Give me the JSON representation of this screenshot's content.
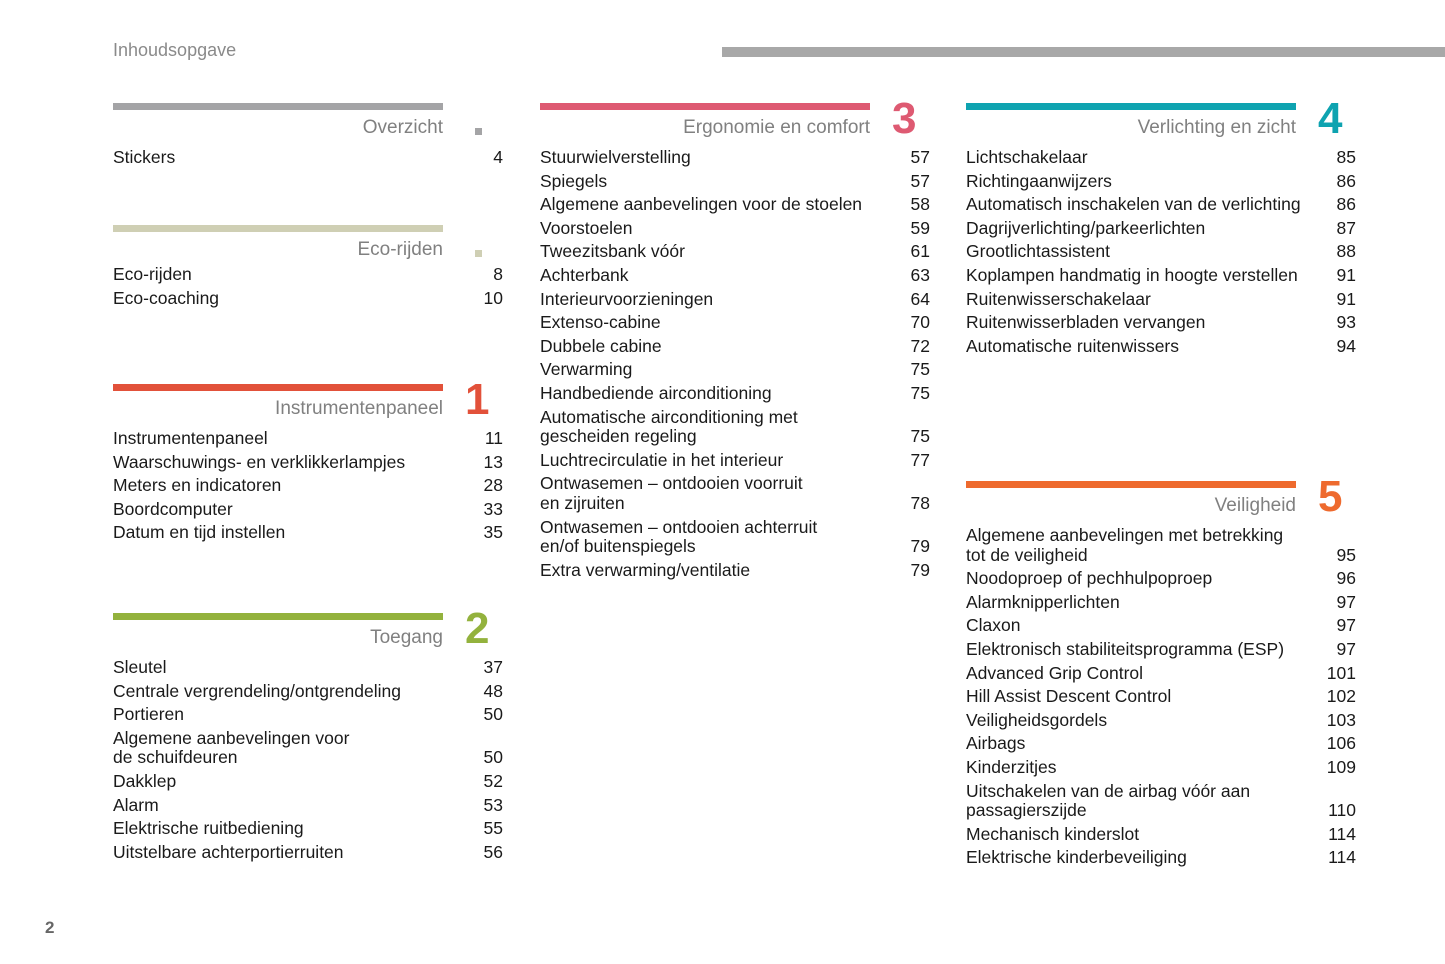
{
  "header": {
    "title": "Inhoudsopgave",
    "page_number": "2"
  },
  "sections": [
    {
      "id": "overzicht",
      "title": "Overzicht",
      "number": "",
      "color": "#a4a4a6",
      "items": [
        {
          "text": "Stickers",
          "page": "4"
        }
      ]
    },
    {
      "id": "eco",
      "title": "Eco-rijden",
      "number": "",
      "color": "#cfcfb4",
      "items": [
        {
          "text": "Eco-rijden",
          "page": "8"
        },
        {
          "text": "Eco-coaching",
          "page": "10"
        }
      ]
    },
    {
      "id": "instrumenten",
      "title": "Instrumentenpaneel",
      "number": "1",
      "color": "#e2513a",
      "items": [
        {
          "text": "Instrumentenpaneel",
          "page": "11"
        },
        {
          "text": "Waarschuwings- en verklikkerlampjes",
          "page": "13"
        },
        {
          "text": "Meters en indicatoren",
          "page": "28"
        },
        {
          "text": "Boordcomputer",
          "page": "33"
        },
        {
          "text": "Datum en tijd instellen",
          "page": "35"
        }
      ]
    },
    {
      "id": "toegang",
      "title": "Toegang",
      "number": "2",
      "color": "#93b23d",
      "items": [
        {
          "text": "Sleutel",
          "page": "37"
        },
        {
          "text": "Centrale vergrendeling/ontgrendeling",
          "page": "48"
        },
        {
          "text": "Portieren",
          "page": "50"
        },
        {
          "text": [
            "Algemene aanbevelingen voor",
            "de schuifdeuren"
          ],
          "page": "50"
        },
        {
          "text": "Dakklep",
          "page": "52"
        },
        {
          "text": "Alarm",
          "page": "53"
        },
        {
          "text": "Elektrische ruitbediening",
          "page": "55"
        },
        {
          "text": "Uitstelbare achterportierruiten",
          "page": "56"
        }
      ]
    },
    {
      "id": "ergonomie",
      "title": "Ergonomie en comfort",
      "number": "3",
      "color": "#de5a72",
      "items": [
        {
          "text": "Stuurwielverstelling",
          "page": "57"
        },
        {
          "text": "Spiegels",
          "page": "57"
        },
        {
          "text": "Algemene aanbevelingen voor de stoelen",
          "page": "58"
        },
        {
          "text": "Voorstoelen",
          "page": "59"
        },
        {
          "text": "Tweezitsbank vóór",
          "page": "61"
        },
        {
          "text": "Achterbank",
          "page": "63"
        },
        {
          "text": "Interieurvoorzieningen",
          "page": "64"
        },
        {
          "text": "Extenso-cabine",
          "page": "70"
        },
        {
          "text": "Dubbele cabine",
          "page": "72"
        },
        {
          "text": "Verwarming",
          "page": "75"
        },
        {
          "text": "Handbediende airconditioning",
          "page": "75"
        },
        {
          "text": [
            "Automatische airconditioning met",
            "gescheiden regeling"
          ],
          "page": "75"
        },
        {
          "text": "Luchtrecirculatie in het interieur",
          "page": "77"
        },
        {
          "text": [
            "Ontwasemen – ontdooien voorruit",
            "en zijruiten"
          ],
          "page": "78"
        },
        {
          "text": [
            "Ontwasemen – ontdooien achterruit",
            "en/of buitenspiegels"
          ],
          "page": "79"
        },
        {
          "text": "Extra verwarming/ventilatie",
          "page": "79"
        }
      ]
    },
    {
      "id": "verlichting",
      "title": "Verlichting en zicht",
      "number": "4",
      "color": "#0ea3b0",
      "items": [
        {
          "text": "Lichtschakelaar",
          "page": "85"
        },
        {
          "text": "Richtingaanwijzers",
          "page": "86"
        },
        {
          "text": "Automatisch inschakelen van de verlichting",
          "page": "86"
        },
        {
          "text": "Dagrijverlichting/parkeerlichten",
          "page": "87"
        },
        {
          "text": "Grootlichtassistent",
          "page": "88"
        },
        {
          "text": "Koplampen handmatig in hoogte verstellen",
          "page": "91"
        },
        {
          "text": "Ruitenwisserschakelaar",
          "page": "91"
        },
        {
          "text": "Ruitenwisserbladen vervangen",
          "page": "93"
        },
        {
          "text": "Automatische ruitenwissers",
          "page": "94"
        }
      ]
    },
    {
      "id": "veiligheid",
      "title": "Veiligheid",
      "number": "5",
      "color": "#ee6a2e",
      "items": [
        {
          "text": [
            "Algemene aanbevelingen met betrekking",
            "tot de veiligheid"
          ],
          "page": "95"
        },
        {
          "text": "Noodoproep of pechhulpoproep",
          "page": "96"
        },
        {
          "text": "Alarmknipperlichten",
          "page": "97"
        },
        {
          "text": "Claxon",
          "page": "97"
        },
        {
          "text": "Elektronisch stabiliteitsprogramma (ESP)",
          "page": "97"
        },
        {
          "text": "Advanced Grip Control",
          "page": "101"
        },
        {
          "text": "Hill Assist Descent Control",
          "page": "102"
        },
        {
          "text": "Veiligheidsgordels",
          "page": "103"
        },
        {
          "text": "Airbags",
          "page": "106"
        },
        {
          "text": "Kinderzitjes",
          "page": "109"
        },
        {
          "text": [
            "Uitschakelen van de airbag vóór aan",
            "passagierszijde"
          ],
          "page": "110"
        },
        {
          "text": "Mechanisch kinderslot",
          "page": "114"
        },
        {
          "text": "Elektrische kinderbeveiliging",
          "page": "114"
        }
      ]
    }
  ]
}
